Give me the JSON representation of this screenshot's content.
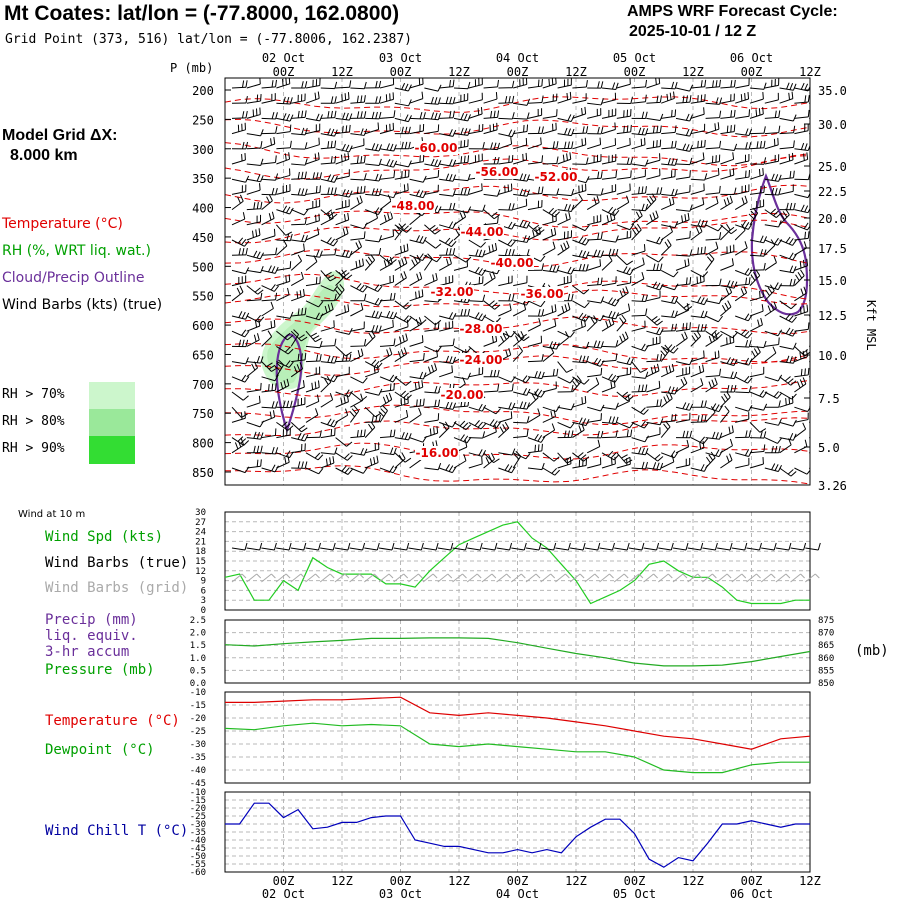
{
  "header": {
    "title": "Mt Coates:  lat/lon = (-77.8000, 162.0800)",
    "subtitle": "Grid Point (373, 516) lat/lon = (-77.8006, 162.2387)",
    "cycle_line1": "AMPS WRF Forecast Cycle:",
    "cycle_line2": "2025-10-01 / 12  Z"
  },
  "model_grid": {
    "line1": "Model Grid ΔX:",
    "line2": "8.000 km"
  },
  "legend": {
    "temperature": "Temperature (°C)",
    "rh": "RH (%, WRT liq. wat.)",
    "cloud": "Cloud/Precip Outline",
    "wind": "Wind Barbs (kts) (true)",
    "rh70": "RH > 70%",
    "rh80": "RH > 80%",
    "rh90": "RH > 90%",
    "colors": {
      "temperature": "#e00000",
      "rh": "#00a000",
      "cloud": "#6a2f9a",
      "rh70": "#ccf6cc",
      "rh80": "#9ae89a",
      "rh90": "#33dd33"
    }
  },
  "time_axis": {
    "top_dates": [
      "02 Oct",
      "03 Oct",
      "04 Oct",
      "05 Oct",
      "06 Oct"
    ],
    "hour_labels": [
      "00Z",
      "12Z",
      "00Z",
      "12Z",
      "00Z",
      "12Z",
      "00Z",
      "12Z",
      "00Z",
      "12Z"
    ],
    "bottom_dates": [
      "02 Oct",
      "03 Oct",
      "04 Oct",
      "05 Oct",
      "06 Oct"
    ]
  },
  "panel_labels": {
    "pressure_axis": "P (mb)",
    "height_axis": "Kft MSL",
    "wind10m_title": "Wind at 10 m",
    "wind_spd": "Wind Spd (kts)",
    "wind_barbs_true": "Wind Barbs (true)",
    "wind_barbs_grid": "Wind Barbs (grid)",
    "precip": "Precip (mm)",
    "liq": "liq. equiv.",
    "accum": "3-hr accum",
    "pressure": "Pressure (mb)",
    "pressure_unit": "(mb)",
    "temperature": "Temperature (°C)",
    "dewpoint": "Dewpoint (°C)",
    "wind_chill": "Wind Chill T (°C)"
  },
  "chart_data": [
    {
      "type": "contour",
      "name": "cross-section",
      "pressure_levels": [
        "200",
        "250",
        "300",
        "350",
        "400",
        "450",
        "500",
        "550",
        "600",
        "650",
        "700",
        "750",
        "800",
        "850"
      ],
      "height_ticks": [
        "35.0",
        "30.0",
        "25.0",
        "22.5",
        "20.0",
        "17.5",
        "15.0",
        "12.5",
        "10.0",
        "7.5",
        "5.0",
        "3.26"
      ],
      "temperature_labels": [
        "-60.00",
        "-56.00",
        "-52.00",
        "-48.00",
        "-44.00",
        "-40.00",
        "-32.00",
        "-36.00",
        "-28.00",
        "-24.00",
        "-20.00",
        "-16.00"
      ]
    },
    {
      "type": "line",
      "name": "wind-10m",
      "y_ticks": [
        "30",
        "27",
        "24",
        "21",
        "18",
        "15",
        "12",
        "9",
        "6",
        "3",
        "0"
      ],
      "ylim": [
        0,
        30
      ],
      "x_hours": [
        0,
        3,
        6,
        9,
        12,
        15,
        18,
        21,
        24,
        27,
        30,
        33,
        36,
        39,
        42,
        45,
        48,
        51,
        54,
        57,
        60,
        63,
        66,
        69,
        72,
        75,
        78,
        81,
        84,
        87,
        90,
        93,
        96,
        99,
        102,
        105,
        108,
        111,
        114,
        117,
        120
      ],
      "values": [
        10,
        11,
        3,
        3,
        9,
        6,
        16,
        13,
        11,
        11,
        11,
        8,
        8,
        7,
        12,
        16,
        20,
        22,
        24,
        26,
        27,
        22,
        19,
        14,
        9,
        2,
        4,
        6,
        9,
        14,
        15,
        12,
        10,
        10,
        7,
        3,
        2,
        2,
        2,
        3,
        3
      ]
    },
    {
      "type": "line",
      "name": "surface-pressure",
      "y_ticks_left": [
        "2.5",
        "2.0",
        "1.5",
        "1.0",
        "0.5",
        "0.0"
      ],
      "y_ticks_right": [
        "875",
        "870",
        "865",
        "860",
        "855",
        "850"
      ],
      "ylim_pressure": [
        850,
        875
      ],
      "x_hours": [
        0,
        6,
        12,
        18,
        24,
        30,
        36,
        42,
        48,
        54,
        60,
        66,
        72,
        78,
        84,
        90,
        96,
        102,
        108,
        114,
        120
      ],
      "values": [
        865.2,
        864.7,
        865.6,
        866.3,
        866.9,
        867.7,
        867.7,
        867.9,
        867.9,
        867.7,
        866.0,
        863.8,
        861.7,
        860.0,
        857.9,
        856.8,
        856.8,
        857.1,
        858.5,
        860.5,
        862.5
      ]
    },
    {
      "type": "line",
      "name": "temperature-dewpoint",
      "y_ticks": [
        "-10",
        "-15",
        "-20",
        "-25",
        "-30",
        "-35",
        "-40",
        "-45"
      ],
      "ylim": [
        -45,
        -10
      ],
      "series": [
        {
          "name": "Temperature",
          "x_hours": [
            0,
            6,
            12,
            18,
            24,
            30,
            36,
            42,
            48,
            54,
            60,
            66,
            72,
            78,
            84,
            90,
            96,
            102,
            108,
            114,
            120
          ],
          "values": [
            -14,
            -14,
            -13.5,
            -13,
            -13,
            -12.5,
            -12,
            -18,
            -19,
            -18,
            -19,
            -20,
            -21.5,
            -23,
            -25,
            -27,
            -28,
            -30,
            -32,
            -28,
            -27
          ]
        },
        {
          "name": "Dewpoint",
          "x_hours": [
            0,
            6,
            12,
            18,
            24,
            30,
            36,
            42,
            48,
            54,
            60,
            66,
            72,
            78,
            84,
            90,
            96,
            102,
            108,
            114,
            120
          ],
          "values": [
            -24,
            -24.5,
            -23,
            -22,
            -23,
            -22.5,
            -23,
            -30,
            -31,
            -30,
            -31,
            -32,
            -33,
            -33,
            -35,
            -40,
            -41,
            -41,
            -38,
            -37,
            -37
          ]
        }
      ]
    },
    {
      "type": "line",
      "name": "wind-chill",
      "y_ticks": [
        "-10",
        "-15",
        "-20",
        "-25",
        "-30",
        "-35",
        "-40",
        "-45",
        "-50",
        "-55",
        "-60"
      ],
      "ylim": [
        -60,
        -10
      ],
      "x_hours": [
        0,
        3,
        6,
        9,
        12,
        15,
        18,
        21,
        24,
        27,
        30,
        33,
        36,
        39,
        42,
        45,
        48,
        51,
        54,
        57,
        60,
        63,
        66,
        69,
        72,
        75,
        78,
        81,
        84,
        87,
        90,
        93,
        96,
        99,
        102,
        105,
        108,
        111,
        114,
        117,
        120
      ],
      "values": [
        -30,
        -30,
        -17,
        -17,
        -26,
        -21,
        -33,
        -32,
        -29,
        -29,
        -26,
        -25,
        -25,
        -40,
        -42,
        -44,
        -44,
        -46,
        -48,
        -48,
        -46,
        -48,
        -46,
        -48,
        -38,
        -32,
        -27,
        -27,
        -36,
        -52,
        -57,
        -51,
        -53,
        -42,
        -30,
        -30,
        -28,
        -30,
        -32,
        -30,
        -30
      ]
    }
  ]
}
